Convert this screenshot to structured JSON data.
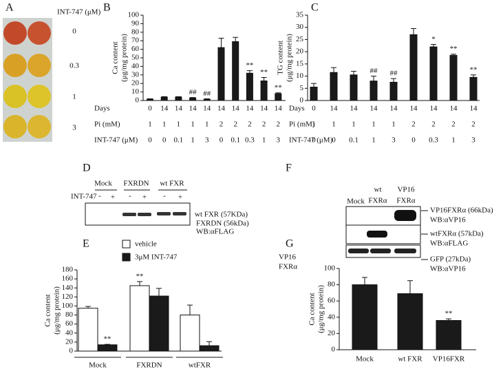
{
  "panel_labels": [
    "A",
    "B",
    "C",
    "D",
    "E",
    "F",
    "G"
  ],
  "panel_a": {
    "header": "INT-747 (μM)",
    "rows": [
      "0",
      "0.3",
      "1",
      "3"
    ]
  },
  "blot_d": {
    "groups": [
      "Mock",
      "FXRDN",
      "wt FXR"
    ],
    "treatment": "INT-747",
    "signs": [
      "-",
      "+",
      "-",
      "+",
      "-",
      "+"
    ],
    "bands": [
      "wt FXR (57KDa)",
      "FXRDN (56kDa)"
    ],
    "antibody": "WB:αFLAG"
  },
  "blot_f": {
    "lanes": [
      [
        "Mock"
      ],
      [
        "wt",
        "FXRα"
      ],
      [
        "VP16",
        "FXRα"
      ]
    ],
    "rows": [
      [
        "VP16FXRα (66kDa)",
        "WB:αVP16"
      ],
      [
        "wtFXRα (57kDa)",
        "WB:αFLAG"
      ],
      [
        "GFP (27kDa)",
        "WB:αVP16"
      ]
    ]
  },
  "chart_data": [
    {
      "type": "bar",
      "ylabel": [
        "Ca content",
        "(μg/mg protein)"
      ],
      "color": "#1a1a1a",
      "values": [
        1.5,
        4,
        4,
        3,
        1.5,
        62,
        69,
        32,
        23,
        8
      ],
      "errors": [
        0.5,
        0.5,
        0.5,
        0.5,
        0.5,
        11,
        5,
        3,
        4,
        1
      ],
      "annotations": [
        null,
        null,
        null,
        "##",
        "##",
        null,
        null,
        "**",
        "**",
        "**"
      ],
      "ylim": [
        0,
        100
      ],
      "yticks": [
        0,
        10,
        20,
        30,
        40,
        50,
        60,
        70,
        80,
        90,
        100
      ],
      "table": [
        {
          "label": "Days",
          "cells": [
            "0",
            "14",
            "14",
            "14",
            "14",
            "14",
            "14",
            "14",
            "14",
            "14"
          ]
        },
        {
          "label": "Pi (mM)",
          "cells": [
            "1",
            "1",
            "1",
            "1",
            "1",
            "2",
            "2",
            "2",
            "2",
            "2"
          ]
        },
        {
          "label": "INT-747 (μM)",
          "cells": [
            "0",
            "0",
            "0.1",
            "1",
            "3",
            "0",
            "0.1",
            "0.3",
            "1",
            "3"
          ]
        }
      ]
    },
    {
      "type": "bar",
      "ylabel": [
        "TG content",
        "(μg/mg protein)"
      ],
      "color": "#1a1a1a",
      "values": [
        5.5,
        11.5,
        10.5,
        8,
        7.5,
        27,
        22,
        18.5,
        9.5
      ],
      "errors": [
        1.5,
        2,
        1.5,
        2,
        1.5,
        2.5,
        1,
        0.5,
        1
      ],
      "annotations": [
        null,
        null,
        null,
        "##",
        "##",
        null,
        "*",
        "**",
        "**"
      ],
      "ylim": [
        0,
        35
      ],
      "yticks": [
        0,
        5,
        10,
        15,
        20,
        25,
        30,
        35
      ],
      "table": [
        {
          "label": "Days",
          "cells": [
            "0",
            "14",
            "14",
            "14",
            "14",
            "14",
            "14",
            "14",
            "14"
          ]
        },
        {
          "label": "Pi (mM)",
          "cells": [
            "1",
            "1",
            "1",
            "1",
            "1",
            "2",
            "2",
            "2",
            "2"
          ]
        },
        {
          "label": "INT-747 (μM)",
          "cells": [
            "0",
            "0",
            "0.1",
            "1",
            "3",
            "0",
            "0.3",
            "1",
            "3"
          ]
        }
      ]
    },
    {
      "type": "bar",
      "ylabel": [
        "Ca content",
        "(μg/mg protein)"
      ],
      "categories": [
        "Mock",
        "FXRDN",
        "wtFXR"
      ],
      "series": [
        {
          "name": "vehicle",
          "color": "#ffffff",
          "values": [
            95,
            145,
            80
          ],
          "errors": [
            4,
            9,
            22
          ],
          "annotations": [
            null,
            "**",
            null
          ]
        },
        {
          "name": "3μM INT-747",
          "color": "#1a1a1a",
          "values": [
            14,
            122,
            12
          ],
          "errors": [
            1,
            17,
            9
          ],
          "annotations": [
            "**",
            null,
            null
          ]
        }
      ],
      "ylim": [
        0,
        180
      ],
      "yticks": [
        0,
        20,
        40,
        60,
        80,
        100,
        120,
        140,
        160,
        180
      ]
    },
    {
      "type": "bar",
      "corner_label": [
        "VP16",
        "FXRα"
      ],
      "ylabel": [
        "Ca content",
        "(μg/mg protein)"
      ],
      "color": "#1a1a1a",
      "categories": [
        "Mock",
        "wt FXR",
        "VP16FXR"
      ],
      "values": [
        80,
        69,
        36
      ],
      "errors": [
        9,
        16,
        2
      ],
      "annotations": [
        null,
        null,
        "**"
      ],
      "ylim": [
        0,
        100
      ],
      "yticks": [
        0,
        20,
        40,
        60,
        80,
        100
      ]
    }
  ]
}
